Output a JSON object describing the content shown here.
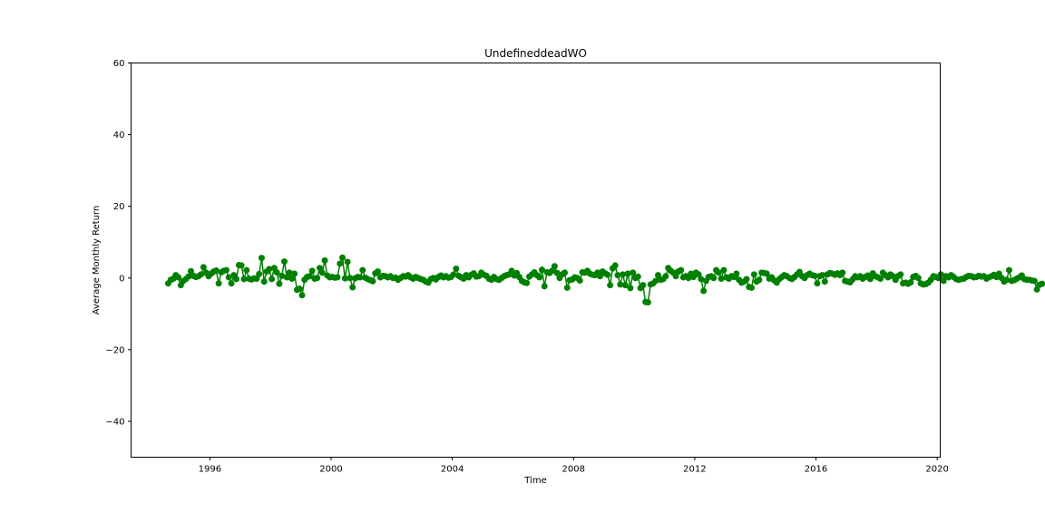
{
  "chart_data": {
    "type": "line",
    "title": "UndefineddeadWO",
    "xlabel": "Time",
    "ylabel": "Average Monthly Return",
    "xlim": [
      1993.4,
      2020.1
    ],
    "ylim": [
      -50,
      60
    ],
    "x_ticks": [
      1996,
      2000,
      2004,
      2008,
      2012,
      2016,
      2020
    ],
    "x_tick_labels": [
      "1996",
      "2000",
      "2004",
      "2008",
      "2012",
      "2016",
      "2020"
    ],
    "y_ticks": [
      -40,
      -20,
      0,
      20,
      40,
      60
    ],
    "y_tick_labels": [
      "−40",
      "−20",
      "0",
      "20",
      "40",
      "60"
    ],
    "grid": false,
    "series": [
      {
        "color": "#008000",
        "marker": "circle",
        "x_start": 1994.625,
        "x_step": 0.0833333,
        "values": [
          -1.5,
          -0.5,
          -0.2,
          0.8,
          0.2,
          -2.0,
          -0.8,
          -0.3,
          0.4,
          1.9,
          0.6,
          0.3,
          0.5,
          1.0,
          3.0,
          1.5,
          0.5,
          1.2,
          1.8,
          2.1,
          -1.5,
          1.6,
          2.0,
          2.2,
          0.2,
          -1.5,
          0.8,
          -0.3,
          3.6,
          3.5,
          -0.3,
          2.2,
          -0.2,
          -0.4,
          -0.1,
          -0.2,
          1.1,
          5.6,
          -1.0,
          1.8,
          2.5,
          -0.3,
          2.8,
          1.6,
          -1.6,
          0.6,
          4.6,
          0.2,
          1.5,
          -0.2,
          1.2,
          -3.3,
          -3.0,
          -4.8,
          -0.5,
          0.3,
          0.5,
          2.0,
          -0.2,
          0.0,
          2.8,
          1.5,
          4.9,
          0.7,
          0.2,
          0.3,
          0.1,
          0.2,
          4.0,
          5.7,
          -0.1,
          4.5,
          0.0,
          -2.6,
          -0.1,
          0.3,
          0.2,
          2.2,
          0.1,
          -0.3,
          -0.6,
          -0.9,
          1.3,
          1.8,
          0.2,
          0.6,
          0.5,
          0.2,
          0.5,
          0.0,
          0.1,
          -0.5,
          0.0,
          0.5,
          0.4,
          0.8,
          0.2,
          -0.2,
          0.3,
          0.0,
          -0.3,
          -0.5,
          -1.0,
          -1.3,
          -0.3,
          0.0,
          -0.4,
          0.3,
          0.7,
          0.2,
          0.5,
          0.1,
          0.3,
          1.0,
          2.6,
          0.6,
          0.2,
          -0.2,
          0.8,
          0.2,
          0.9,
          1.3,
          0.4,
          0.5,
          1.5,
          0.9,
          0.6,
          -0.2,
          -0.5,
          0.3,
          -0.3,
          -0.5,
          0.0,
          0.5,
          0.8,
          1.0,
          2.0,
          0.7,
          1.4,
          0.3,
          -0.8,
          -1.2,
          -1.4,
          0.4,
          1.0,
          1.6,
          0.8,
          0.2,
          2.3,
          -2.3,
          1.6,
          1.4,
          2.0,
          3.3,
          1.4,
          0.0,
          1.0,
          1.5,
          -2.7,
          -0.6,
          -0.4,
          0.2,
          0.0,
          -0.7,
          1.6,
          1.5,
          2.0,
          1.2,
          0.9,
          0.8,
          1.5,
          0.5,
          1.8,
          1.3,
          0.9,
          -2.0,
          2.7,
          3.5,
          0.8,
          -1.8,
          1.0,
          -2.0,
          1.2,
          -2.8,
          1.5,
          0.0,
          0.4,
          -2.8,
          -2.0,
          -6.7,
          -6.8,
          -1.8,
          -1.5,
          -0.8,
          0.8,
          -0.5,
          -0.3,
          0.5,
          2.8,
          2.0,
          1.5,
          0.5,
          1.8,
          2.2,
          0.2,
          0.5,
          0.0,
          1.2,
          0.3,
          1.5,
          1.0,
          -0.3,
          -3.6,
          -0.8,
          0.3,
          0.5,
          0.0,
          2.2,
          1.5,
          -0.2,
          2.2,
          0.2,
          -0.2,
          0.5,
          0.3,
          1.2,
          -0.5,
          -1.3,
          -1.0,
          -0.3,
          -2.5,
          -2.7,
          1.0,
          -1.0,
          -0.5,
          1.5,
          1.4,
          1.2,
          -0.2,
          0.2,
          -0.7,
          -1.3,
          -0.3,
          0.3,
          0.8,
          0.5,
          0.0,
          -0.3,
          0.3,
          1.0,
          1.7,
          0.5,
          0.0,
          0.8,
          1.2,
          0.8,
          0.6,
          -1.5,
          0.5,
          0.8,
          -1.0,
          1.0,
          1.4,
          1.2,
          0.9,
          1.3,
          0.8,
          1.5,
          -0.8,
          -1.0,
          -1.2,
          -0.4,
          0.5,
          0.2,
          0.5,
          -0.2,
          0.3,
          0.7,
          -0.3,
          1.3,
          0.5,
          0.2,
          -0.2,
          1.5,
          0.8,
          0.2,
          1.0,
          0.5,
          -0.5,
          0.5,
          1.0,
          -1.5,
          -1.3,
          -1.6,
          -1.2,
          0.3,
          0.6,
          0.0,
          -1.5,
          -1.8,
          -1.7,
          -1.3,
          -0.5,
          0.5,
          0.3,
          0.0,
          1.0,
          -0.8,
          0.5,
          0.2,
          0.8,
          0.3,
          -0.3,
          -0.5,
          -0.3,
          -0.2,
          0.3,
          0.6,
          0.5,
          0.2,
          0.3,
          0.6,
          0.4,
          0.5,
          -0.2,
          0.2,
          0.5,
          0.9,
          0.3,
          1.2,
          0.0,
          -1.0,
          -0.5,
          2.2,
          -0.8,
          -0.6,
          -0.2,
          0.2,
          0.7,
          -0.3,
          -0.5,
          -0.5,
          -0.7,
          -0.8,
          -3.2,
          -1.9,
          -1.6
        ]
      }
    ]
  }
}
